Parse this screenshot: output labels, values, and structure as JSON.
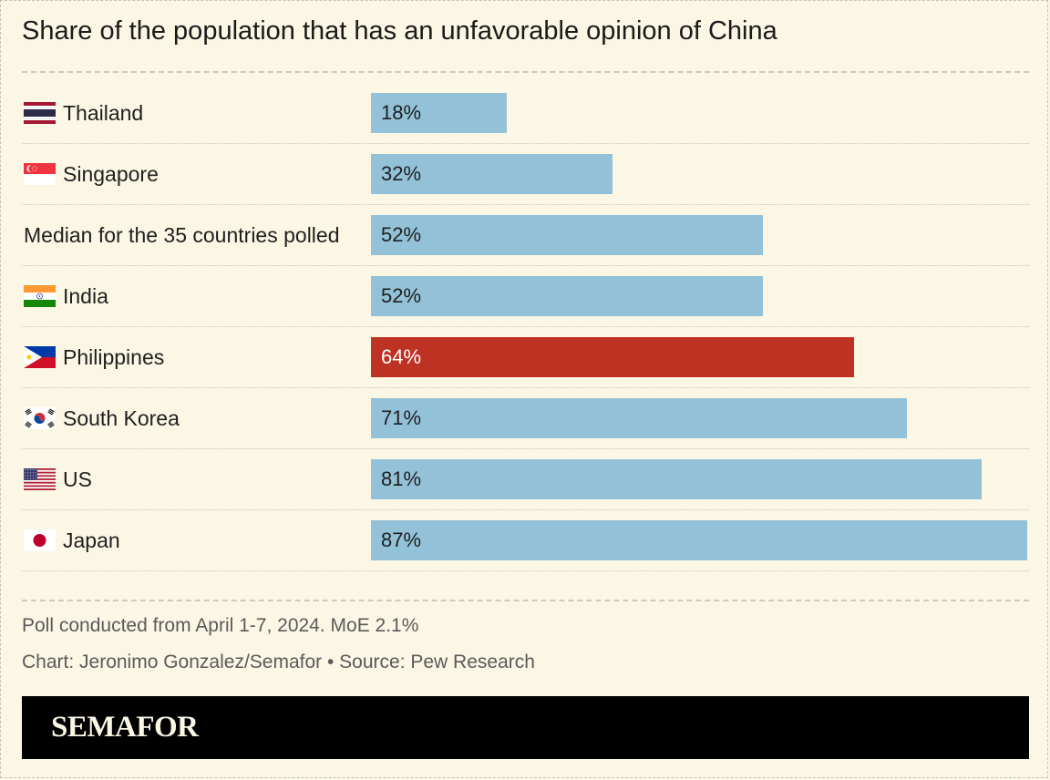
{
  "chart_data": {
    "type": "bar",
    "orientation": "horizontal",
    "title": "Share of the population that has an unfavorable opinion of China",
    "categories": [
      "Thailand",
      "Singapore",
      "Median for the 35 countries polled",
      "India",
      "Philippines",
      "South Korea",
      "US",
      "Japan"
    ],
    "values": [
      18,
      32,
      52,
      52,
      64,
      71,
      81,
      87
    ],
    "value_labels": [
      "18%",
      "32%",
      "52%",
      "52%",
      "64%",
      "71%",
      "81%",
      "87%"
    ],
    "flags": [
      "thailand-flag-icon",
      "singapore-flag-icon",
      "",
      "india-flag-icon",
      "philippines-flag-icon",
      "south-korea-flag-icon",
      "us-flag-icon",
      "japan-flag-icon"
    ],
    "highlight": "Philippines",
    "xlim": [
      0,
      87
    ],
    "colors": {
      "bar": "#92c1d8",
      "highlight": "#bd3223",
      "background": "#fbf7e4"
    },
    "grid": false,
    "legend": "none"
  },
  "notes": {
    "poll": "Poll conducted from April 1-7, 2024. MoE 2.1%",
    "credit": "Chart: Jeronimo Gonzalez/Semafor • Source: Pew Research"
  },
  "brand": {
    "logo": "SEMAFOR"
  }
}
